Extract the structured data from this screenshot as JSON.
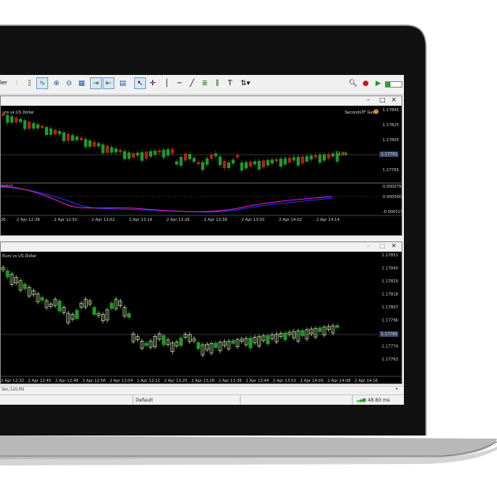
{
  "toolbar": {
    "partial_label": "ler",
    "icons": [
      "bar-chart-icon",
      "candle-chart-icon",
      "line-chart-icon",
      "zoom-in-icon",
      "zoom-out-icon",
      "tile-windows-icon",
      "autoscroll-icon",
      "chart-shift-icon",
      "indicators-icon",
      "cursor-icon",
      "crosshair-icon",
      "vertical-line-icon",
      "horizontal-line-icon",
      "trendline-icon",
      "fibonacci-icon",
      "text-icon",
      "arrows-icon"
    ]
  },
  "top_window": {
    "title": "uro vs US Dollar",
    "ea_label": "SecondsTF GenX",
    "price_levels": [
      "1.17845",
      "1.17825",
      "1.17805",
      "1.17785",
      "1.17765"
    ],
    "current_price": "1.17781",
    "line_label": "T109",
    "osc_levels": [
      "0.000079",
      "0.000000",
      "-0.000119"
    ],
    "osc_top_label": "00021",
    "time_labels": [
      "26",
      "2 Apr 12:38",
      "2 Apr 12:50",
      "2 Apr 13:02",
      "2 Apr 13:14",
      "2 Apr 13:26",
      "2 Apr 13:38",
      "2 Apr 13:50",
      "2 Apr 14:02",
      "2 Apr 14:14"
    ]
  },
  "bottom_window": {
    "title": "Euro vs US Dollar",
    "price_levels": [
      "1.17851",
      "1.17840",
      "1.17829",
      "1.17818",
      "1.17807",
      "1.17796",
      "1.17785",
      "1.17774",
      "1.17763"
    ],
    "current_price": "1.17785",
    "time_labels": [
      "2 Apr 12:32",
      "2 Apr 12:40",
      "2 Apr 12:48",
      "2 Apr 12:56",
      "2 Apr 13:04",
      "2 Apr 13:12",
      "2 Apr 13:20",
      "2 Apr 13:28",
      "2 Apr 13:36",
      "2 Apr 13:44",
      "2 Apr 13:52",
      "2 Apr 14:00",
      "2 Apr 14:08",
      "2 Apr 14:16"
    ]
  },
  "tab": {
    "label": "Sec,120,M1"
  },
  "status": {
    "profile": "Default",
    "ping": "48.80 ms"
  },
  "colors": {
    "bull": "#1e9a2a",
    "bear": "#c01818",
    "bull2": "#d8ffb0",
    "osc_pink": "#e020d0",
    "osc_blue": "#2233ff",
    "line": "#cfcf40"
  }
}
